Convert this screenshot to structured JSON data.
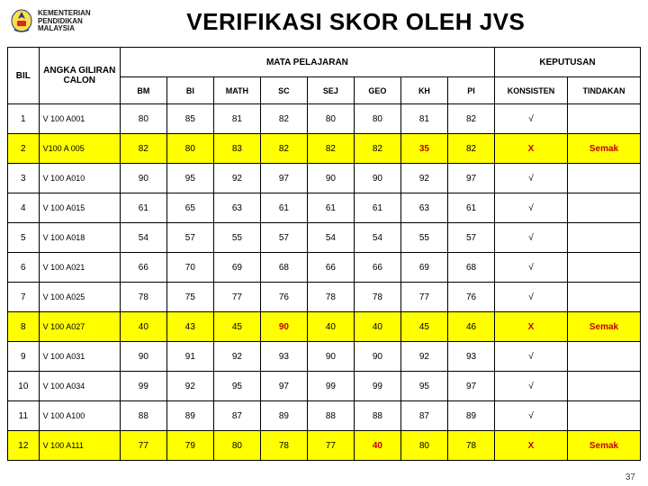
{
  "header": {
    "org_line1": "KEMENTERIAN",
    "org_line2": "PENDIDIKAN",
    "org_line3": "MALAYSIA",
    "title": "VERIFIKASI SKOR OLEH JVS"
  },
  "table": {
    "headers1": {
      "bil": "BIL",
      "angka": "ANGKA GILIRAN CALON",
      "mata": "MATA PELAJARAN",
      "keputusan": "KEPUTUSAN"
    },
    "headers2": [
      "BM",
      "BI",
      "MATH",
      "SC",
      "SEJ",
      "GEO",
      "KH",
      "PI",
      "KONSISTEN",
      "TINDAKAN"
    ],
    "rows": [
      {
        "bil": "1",
        "id": "V 100 A001",
        "cells": [
          "80",
          "85",
          "81",
          "82",
          "80",
          "80",
          "81",
          "82"
        ],
        "konsisten": "√",
        "tindakan": "",
        "hl": false,
        "red": []
      },
      {
        "bil": "2",
        "id": "V100 A 005",
        "cells": [
          "82",
          "80",
          "83",
          "82",
          "82",
          "82",
          "35",
          "82"
        ],
        "konsisten": "X",
        "tindakan": "Semak",
        "hl": true,
        "red": [
          6
        ]
      },
      {
        "bil": "3",
        "id": "V 100 A010",
        "cells": [
          "90",
          "95",
          "92",
          "97",
          "90",
          "90",
          "92",
          "97"
        ],
        "konsisten": "√",
        "tindakan": "",
        "hl": false,
        "red": []
      },
      {
        "bil": "4",
        "id": "V 100 A015",
        "cells": [
          "61",
          "65",
          "63",
          "61",
          "61",
          "61",
          "63",
          "61"
        ],
        "konsisten": "√",
        "tindakan": "",
        "hl": false,
        "red": []
      },
      {
        "bil": "5",
        "id": "V 100 A018",
        "cells": [
          "54",
          "57",
          "55",
          "57",
          "54",
          "54",
          "55",
          "57"
        ],
        "konsisten": "√",
        "tindakan": "",
        "hl": false,
        "red": []
      },
      {
        "bil": "6",
        "id": "V 100 A021",
        "cells": [
          "66",
          "70",
          "69",
          "68",
          "66",
          "66",
          "69",
          "68"
        ],
        "konsisten": "√",
        "tindakan": "",
        "hl": false,
        "red": []
      },
      {
        "bil": "7",
        "id": "V 100 A025",
        "cells": [
          "78",
          "75",
          "77",
          "76",
          "78",
          "78",
          "77",
          "76"
        ],
        "konsisten": "√",
        "tindakan": "",
        "hl": false,
        "red": []
      },
      {
        "bil": "8",
        "id": "V 100 A027",
        "cells": [
          "40",
          "43",
          "45",
          "90",
          "40",
          "40",
          "45",
          "46"
        ],
        "konsisten": "X",
        "tindakan": "Semak",
        "hl": true,
        "red": [
          3
        ]
      },
      {
        "bil": "9",
        "id": "V 100 A031",
        "cells": [
          "90",
          "91",
          "92",
          "93",
          "90",
          "90",
          "92",
          "93"
        ],
        "konsisten": "√",
        "tindakan": "",
        "hl": false,
        "red": []
      },
      {
        "bil": "10",
        "id": "V 100 A034",
        "cells": [
          "99",
          "92",
          "95",
          "97",
          "99",
          "99",
          "95",
          "97"
        ],
        "konsisten": "√",
        "tindakan": "",
        "hl": false,
        "red": []
      },
      {
        "bil": "11",
        "id": "V 100 A100",
        "cells": [
          "88",
          "89",
          "87",
          "89",
          "88",
          "88",
          "87",
          "89"
        ],
        "konsisten": "√",
        "tindakan": "",
        "hl": false,
        "red": []
      },
      {
        "bil": "12",
        "id": "V 100 A111",
        "cells": [
          "77",
          "79",
          "80",
          "78",
          "77",
          "40",
          "80",
          "78"
        ],
        "konsisten": "X",
        "tindakan": "Semak",
        "hl": true,
        "red": [
          5
        ]
      }
    ]
  },
  "page_number": "37",
  "colors": {
    "highlight": "#ffff00",
    "red_text": "#c00000",
    "border": "#000000"
  }
}
